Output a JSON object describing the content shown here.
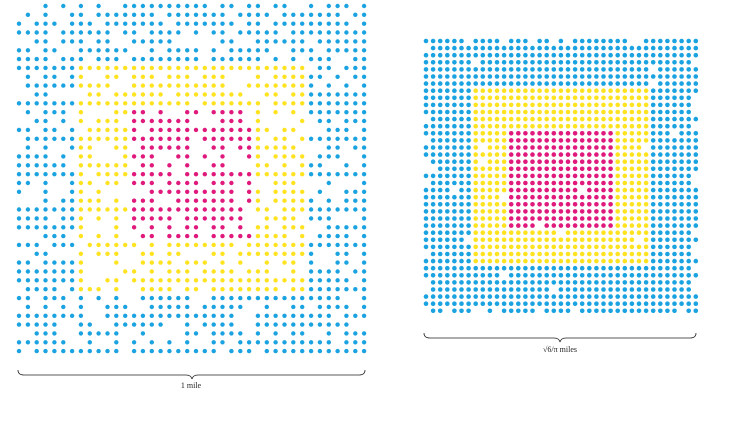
{
  "left_figure": {
    "scale_label": "1 mile"
  },
  "right_figure": {
    "scale_label": "√6/π miles"
  }
}
